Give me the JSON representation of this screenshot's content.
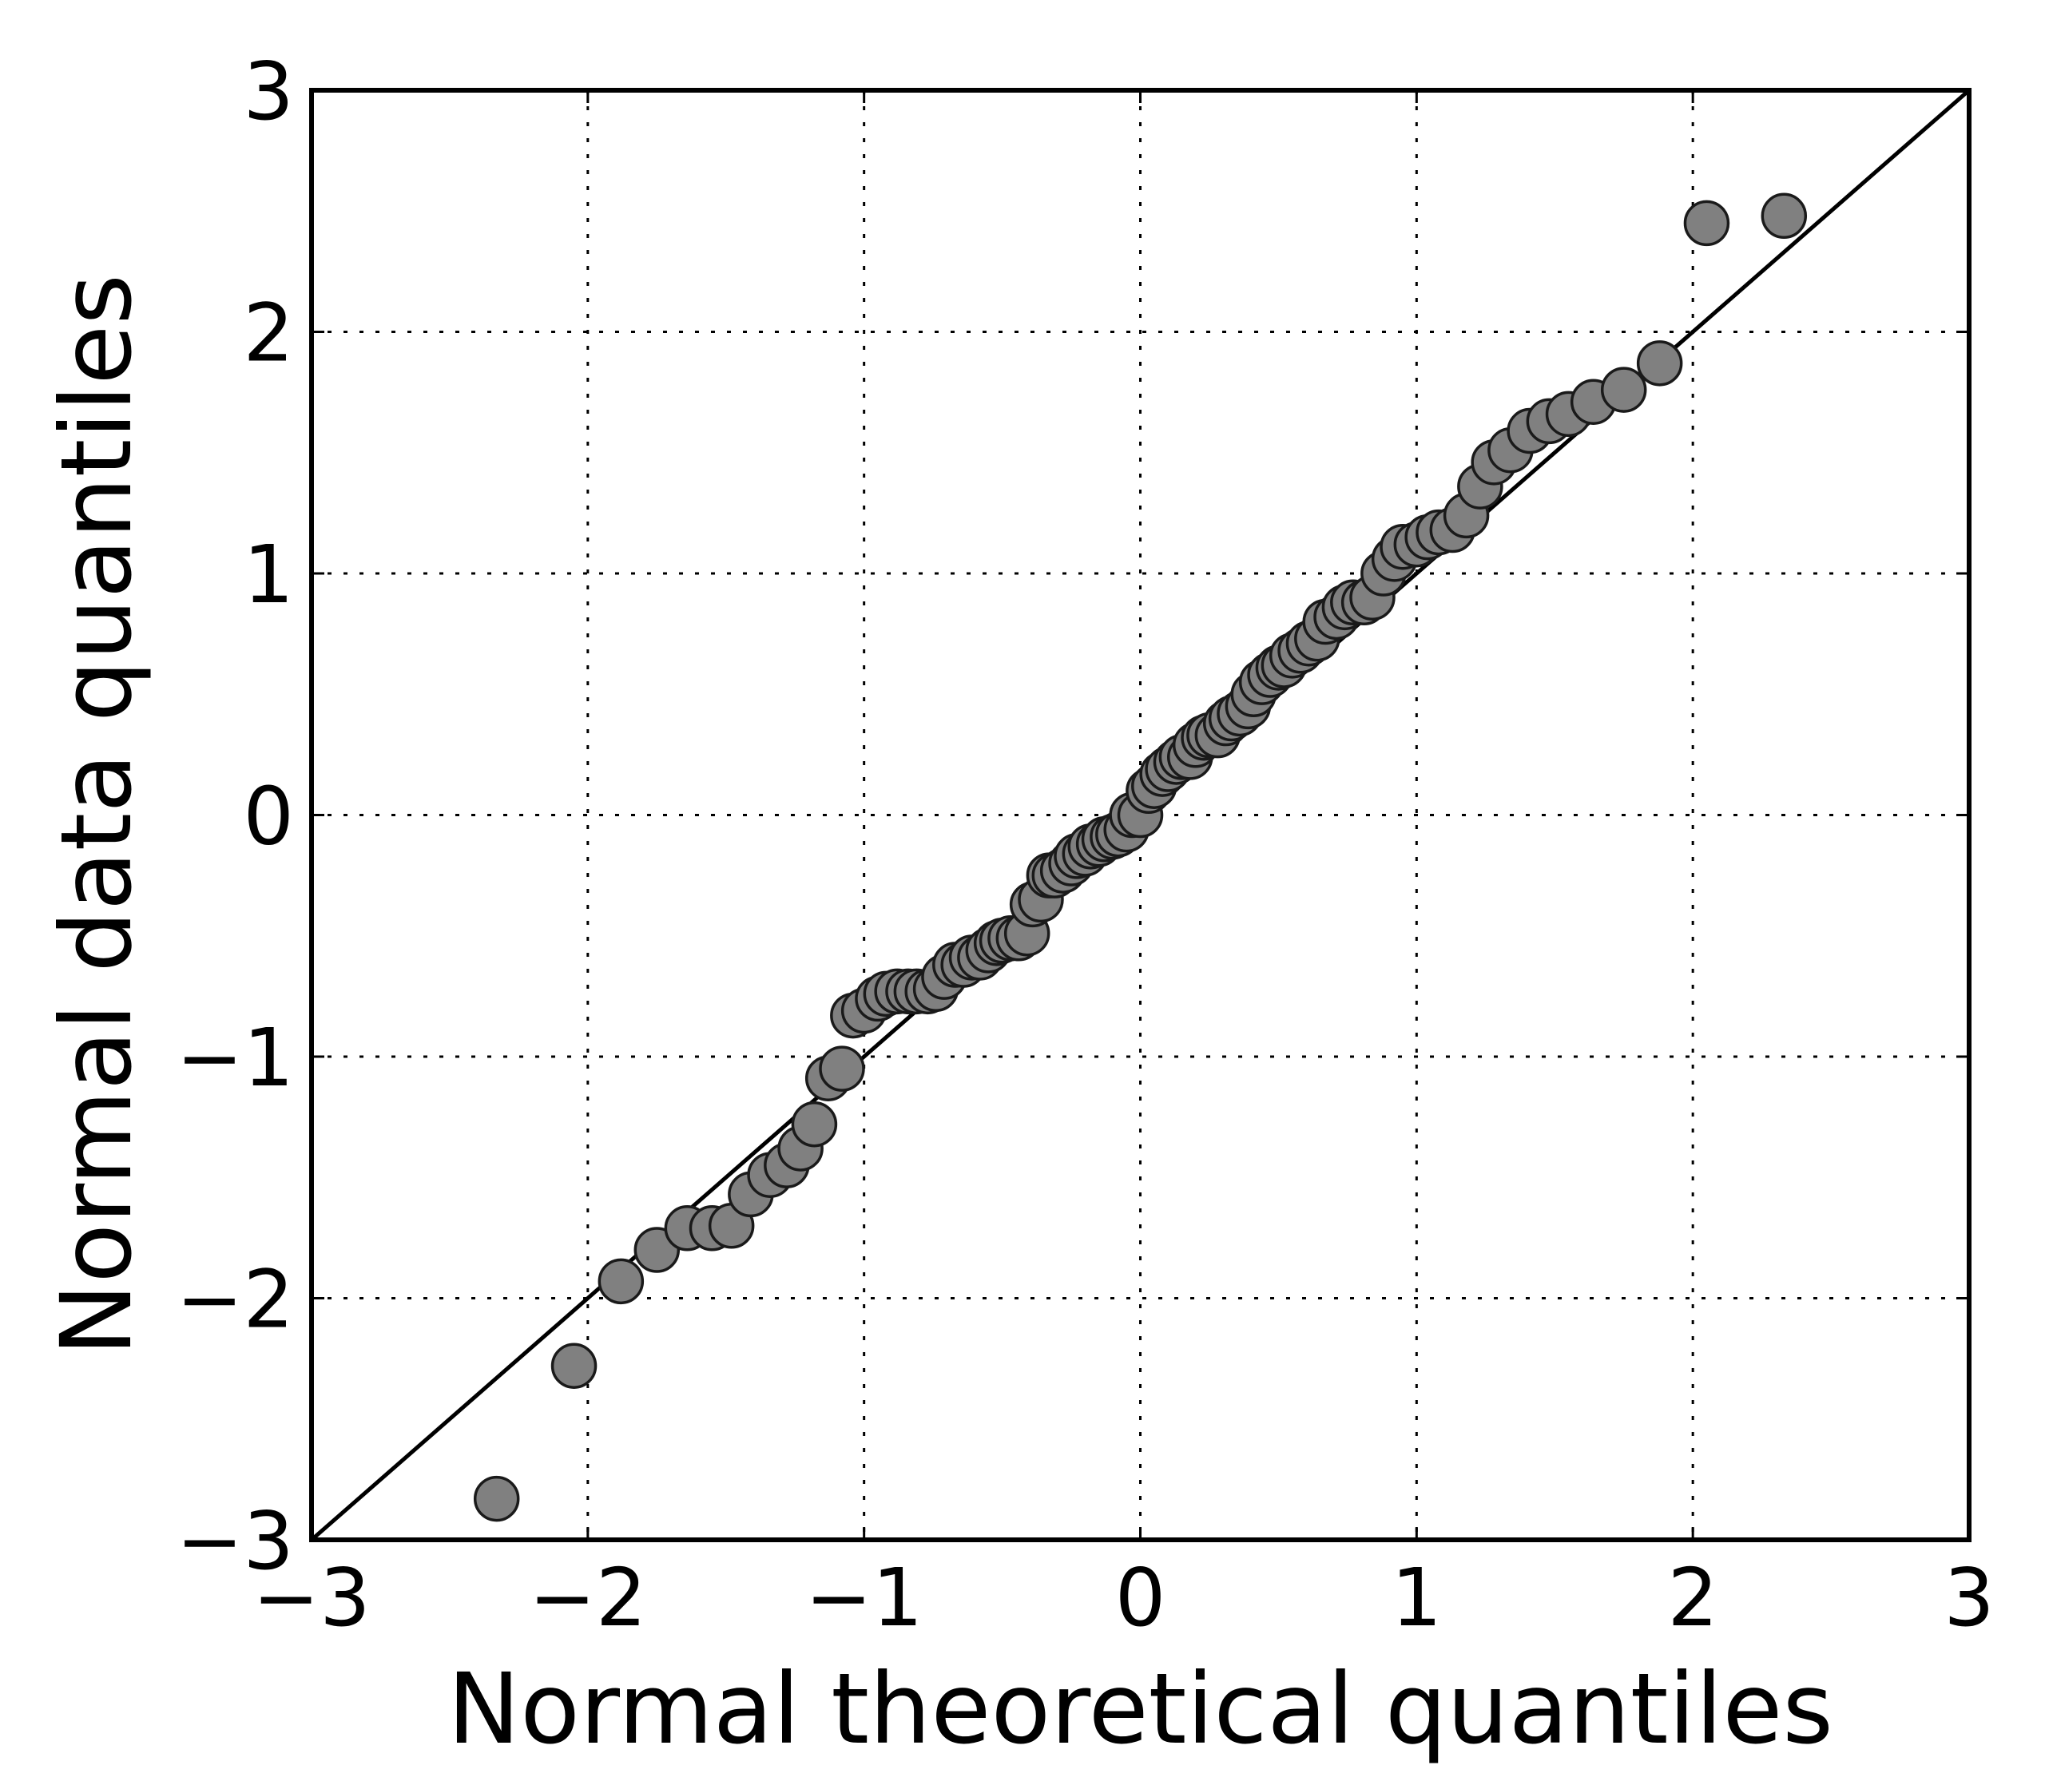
{
  "chart_data": {
    "type": "scatter",
    "xlabel": "Normal theoretical quantiles",
    "ylabel": "Normal data quantiles",
    "xlim": [
      -3,
      3
    ],
    "ylim": [
      -3,
      3
    ],
    "xticks": [
      -3,
      -2,
      -1,
      0,
      1,
      2,
      3
    ],
    "yticks": [
      -3,
      -2,
      -1,
      0,
      1,
      2,
      3
    ],
    "xtick_labels": [
      "−3",
      "−2",
      "−1",
      "0",
      "1",
      "2",
      "3"
    ],
    "ytick_labels": [
      "−3",
      "−2",
      "−1",
      "0",
      "1",
      "2",
      "3"
    ],
    "grid": true,
    "grid_style": "dotted",
    "reference_line": {
      "from": [
        -3,
        -3
      ],
      "to": [
        3,
        3
      ],
      "color": "#000000"
    },
    "marker_color": "#808080",
    "marker_edge_color": "#1a1a1a",
    "points": [
      [
        -2.33,
        -2.83
      ],
      [
        -2.05,
        -2.28
      ],
      [
        -1.88,
        -1.93
      ],
      [
        -1.75,
        -1.8
      ],
      [
        -1.64,
        -1.71
      ],
      [
        -1.55,
        -1.71
      ],
      [
        -1.48,
        -1.7
      ],
      [
        -1.41,
        -1.57
      ],
      [
        -1.34,
        -1.49
      ],
      [
        -1.28,
        -1.45
      ],
      [
        -1.23,
        -1.38
      ],
      [
        -1.18,
        -1.28
      ],
      [
        -1.13,
        -1.09
      ],
      [
        -1.08,
        -1.05
      ],
      [
        -1.04,
        -0.83
      ],
      [
        -1.0,
        -0.81
      ],
      [
        -0.95,
        -0.76
      ],
      [
        -0.92,
        -0.74
      ],
      [
        -0.88,
        -0.73
      ],
      [
        -0.84,
        -0.73
      ],
      [
        -0.81,
        -0.73
      ],
      [
        -0.77,
        -0.73
      ],
      [
        -0.74,
        -0.72
      ],
      [
        -0.71,
        -0.67
      ],
      [
        -0.67,
        -0.62
      ],
      [
        -0.64,
        -0.62
      ],
      [
        -0.61,
        -0.59
      ],
      [
        -0.58,
        -0.59
      ],
      [
        -0.55,
        -0.56
      ],
      [
        -0.52,
        -0.53
      ],
      [
        -0.5,
        -0.52
      ],
      [
        -0.47,
        -0.51
      ],
      [
        -0.44,
        -0.51
      ],
      [
        -0.41,
        -0.49
      ],
      [
        -0.39,
        -0.37
      ],
      [
        -0.36,
        -0.35
      ],
      [
        -0.33,
        -0.25
      ],
      [
        -0.31,
        -0.25
      ],
      [
        -0.28,
        -0.23
      ],
      [
        -0.25,
        -0.2
      ],
      [
        -0.23,
        -0.17
      ],
      [
        -0.2,
        -0.16
      ],
      [
        -0.18,
        -0.13
      ],
      [
        -0.15,
        -0.12
      ],
      [
        -0.13,
        -0.1
      ],
      [
        -0.1,
        -0.09
      ],
      [
        -0.08,
        -0.08
      ],
      [
        -0.05,
        -0.06
      ],
      [
        -0.03,
        -0.0
      ],
      [
        0.0,
        0.0
      ],
      [
        0.03,
        0.1
      ],
      [
        0.05,
        0.12
      ],
      [
        0.08,
        0.17
      ],
      [
        0.1,
        0.19
      ],
      [
        0.13,
        0.22
      ],
      [
        0.15,
        0.24
      ],
      [
        0.18,
        0.24
      ],
      [
        0.2,
        0.29
      ],
      [
        0.23,
        0.32
      ],
      [
        0.25,
        0.33
      ],
      [
        0.28,
        0.33
      ],
      [
        0.31,
        0.38
      ],
      [
        0.33,
        0.4
      ],
      [
        0.36,
        0.42
      ],
      [
        0.39,
        0.45
      ],
      [
        0.41,
        0.5
      ],
      [
        0.44,
        0.55
      ],
      [
        0.47,
        0.58
      ],
      [
        0.5,
        0.61
      ],
      [
        0.52,
        0.62
      ],
      [
        0.55,
        0.66
      ],
      [
        0.58,
        0.68
      ],
      [
        0.61,
        0.71
      ],
      [
        0.64,
        0.73
      ],
      [
        0.67,
        0.8
      ],
      [
        0.71,
        0.82
      ],
      [
        0.74,
        0.86
      ],
      [
        0.77,
        0.88
      ],
      [
        0.81,
        0.88
      ],
      [
        0.84,
        0.9
      ],
      [
        0.88,
        1.0
      ],
      [
        0.92,
        1.06
      ],
      [
        0.95,
        1.11
      ],
      [
        1.0,
        1.12
      ],
      [
        1.04,
        1.15
      ],
      [
        1.08,
        1.17
      ],
      [
        1.13,
        1.18
      ],
      [
        1.18,
        1.24
      ],
      [
        1.23,
        1.36
      ],
      [
        1.28,
        1.46
      ],
      [
        1.34,
        1.51
      ],
      [
        1.41,
        1.59
      ],
      [
        1.48,
        1.63
      ],
      [
        1.55,
        1.66
      ],
      [
        1.64,
        1.71
      ],
      [
        1.75,
        1.76
      ],
      [
        1.88,
        1.87
      ],
      [
        2.05,
        2.45
      ],
      [
        2.33,
        2.48
      ]
    ]
  }
}
